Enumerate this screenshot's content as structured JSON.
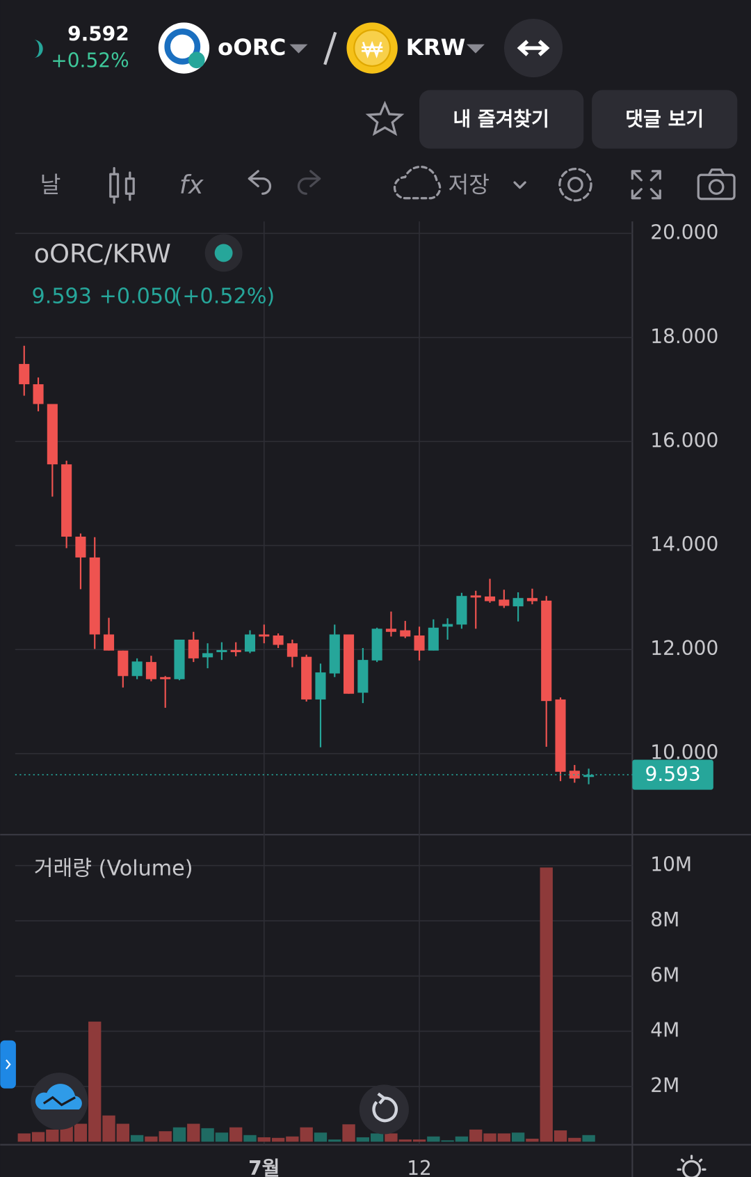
{
  "header": {
    "price": "9.592",
    "change": "+0.52%",
    "base": "oORC",
    "quote": "KRW"
  },
  "buttons": {
    "favorites": "내 즐겨찾기",
    "comments": "댓글 보기"
  },
  "toolbar": {
    "interval": "날",
    "save": "저장"
  },
  "chart_data": {
    "type": "candlestick",
    "title": "oORC/KRW",
    "summary": {
      "last": "9.593",
      "change": "+0.050",
      "change_pct": "(+0.52%)"
    },
    "categories": [
      null,
      null,
      null,
      null,
      null,
      null,
      null,
      null,
      null,
      null,
      null,
      null,
      null,
      null,
      null,
      null,
      null,
      "7월",
      null,
      null,
      null,
      null,
      null,
      null,
      null,
      null,
      null,
      null,
      "12",
      null,
      null,
      null,
      null,
      null,
      null,
      null,
      null,
      null,
      null,
      null,
      null
    ],
    "open": [
      17.49,
      17.1,
      16.72,
      15.56,
      14.17,
      13.77,
      12.29,
      11.98,
      11.49,
      11.76,
      11.47,
      11.43,
      12.19,
      11.85,
      11.95,
      11.99,
      11.96,
      12.29,
      12.27,
      12.12,
      11.86,
      11.04,
      11.54,
      12.29,
      11.17,
      11.79,
      12.4,
      12.37,
      12.27,
      11.98,
      12.44,
      12.48,
      13.04,
      13.02,
      12.96,
      12.83,
      12.99,
      12.94,
      11.04,
      9.67,
      9.55
    ],
    "high": [
      17.84,
      17.23,
      16.72,
      15.63,
      14.23,
      14.16,
      12.61,
      11.98,
      11.83,
      11.88,
      11.49,
      12.19,
      12.34,
      12.12,
      12.14,
      12.14,
      12.37,
      12.48,
      12.31,
      12.19,
      11.9,
      11.73,
      12.48,
      12.29,
      12.03,
      12.42,
      12.73,
      12.55,
      12.44,
      12.58,
      12.6,
      13.09,
      13.13,
      13.36,
      13.15,
      13.1,
      13.17,
      13.03,
      11.08,
      9.78,
      9.71
    ],
    "low": [
      16.88,
      16.58,
      14.94,
      13.95,
      13.16,
      12.01,
      11.98,
      11.27,
      11.43,
      11.39,
      10.88,
      11.41,
      11.76,
      11.64,
      11.8,
      11.87,
      11.93,
      12.12,
      12.03,
      11.66,
      11.0,
      10.12,
      11.47,
      11.15,
      10.97,
      11.76,
      12.25,
      12.22,
      11.79,
      11.98,
      12.19,
      12.4,
      12.4,
      12.9,
      12.8,
      12.54,
      12.87,
      10.13,
      9.47,
      9.44,
      9.41
    ],
    "close": [
      17.1,
      16.72,
      15.56,
      14.17,
      13.77,
      12.29,
      11.98,
      11.49,
      11.77,
      11.43,
      11.43,
      12.19,
      11.83,
      11.93,
      11.99,
      11.95,
      12.29,
      12.25,
      12.09,
      11.86,
      11.04,
      11.56,
      12.29,
      11.15,
      11.8,
      12.4,
      12.34,
      12.25,
      11.98,
      12.42,
      12.49,
      13.03,
      13.0,
      12.93,
      12.84,
      12.99,
      12.93,
      11.01,
      9.65,
      9.52,
      9.59
    ],
    "up_color": "#26a69a",
    "down_color": "#ef5350",
    "ylim": [
      8.44,
      20.23
    ],
    "yticks": [
      {
        "value": 10,
        "label": "10.000"
      },
      {
        "value": 12,
        "label": "12.000"
      },
      {
        "value": 14,
        "label": "14.000"
      },
      {
        "value": 16,
        "label": "16.000"
      },
      {
        "value": 18,
        "label": "18.000"
      },
      {
        "value": 20,
        "label": "20.000"
      }
    ],
    "last_price": 9.593,
    "volume": {
      "title": "거래량 (Volume)",
      "values": [
        300000,
        350000,
        440000,
        570000,
        650000,
        4350000,
        950000,
        650000,
        240000,
        190000,
        380000,
        520000,
        650000,
        490000,
        330000,
        520000,
        240000,
        160000,
        140000,
        190000,
        520000,
        330000,
        80000,
        630000,
        160000,
        300000,
        300000,
        80000,
        80000,
        190000,
        50000,
        190000,
        440000,
        300000,
        300000,
        330000,
        110000,
        9930000,
        410000,
        140000,
        240000
      ],
      "up_color": "#1f6b63",
      "down_color": "#8e3a3a",
      "ylim": [
        0,
        10900000
      ],
      "yticks": [
        {
          "value": 2000000,
          "label": "2M"
        },
        {
          "value": 4000000,
          "label": "4M"
        },
        {
          "value": 6000000,
          "label": "6M"
        },
        {
          "value": 8000000,
          "label": "8M"
        },
        {
          "value": 10000000,
          "label": "10M"
        }
      ]
    }
  }
}
